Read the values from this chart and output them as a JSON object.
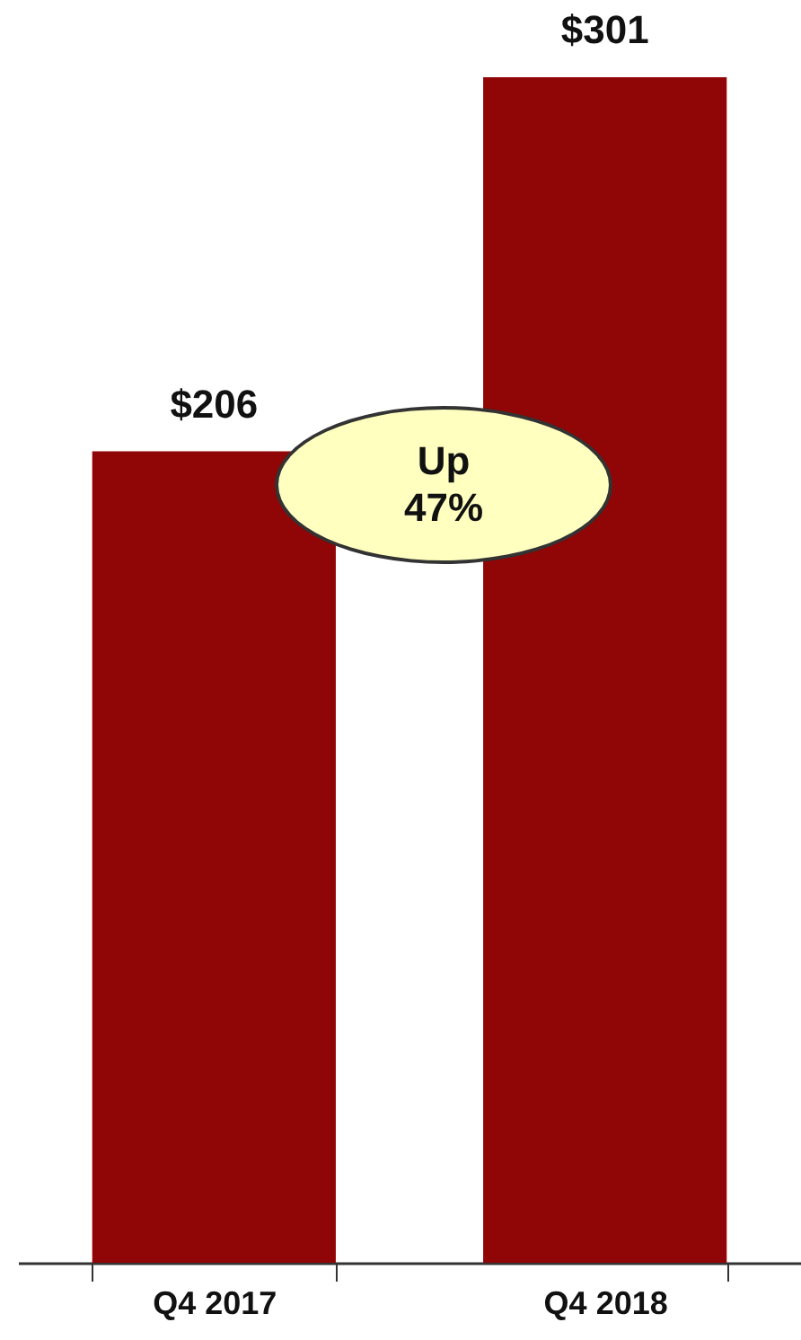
{
  "chart_data": {
    "type": "bar",
    "categories": [
      "Q4 2017",
      "Q4 2018"
    ],
    "values": [
      206,
      301
    ],
    "color": "#900505",
    "value_labels": [
      "$206",
      "$301"
    ],
    "annotations": [
      "Up\n47%"
    ]
  }
}
